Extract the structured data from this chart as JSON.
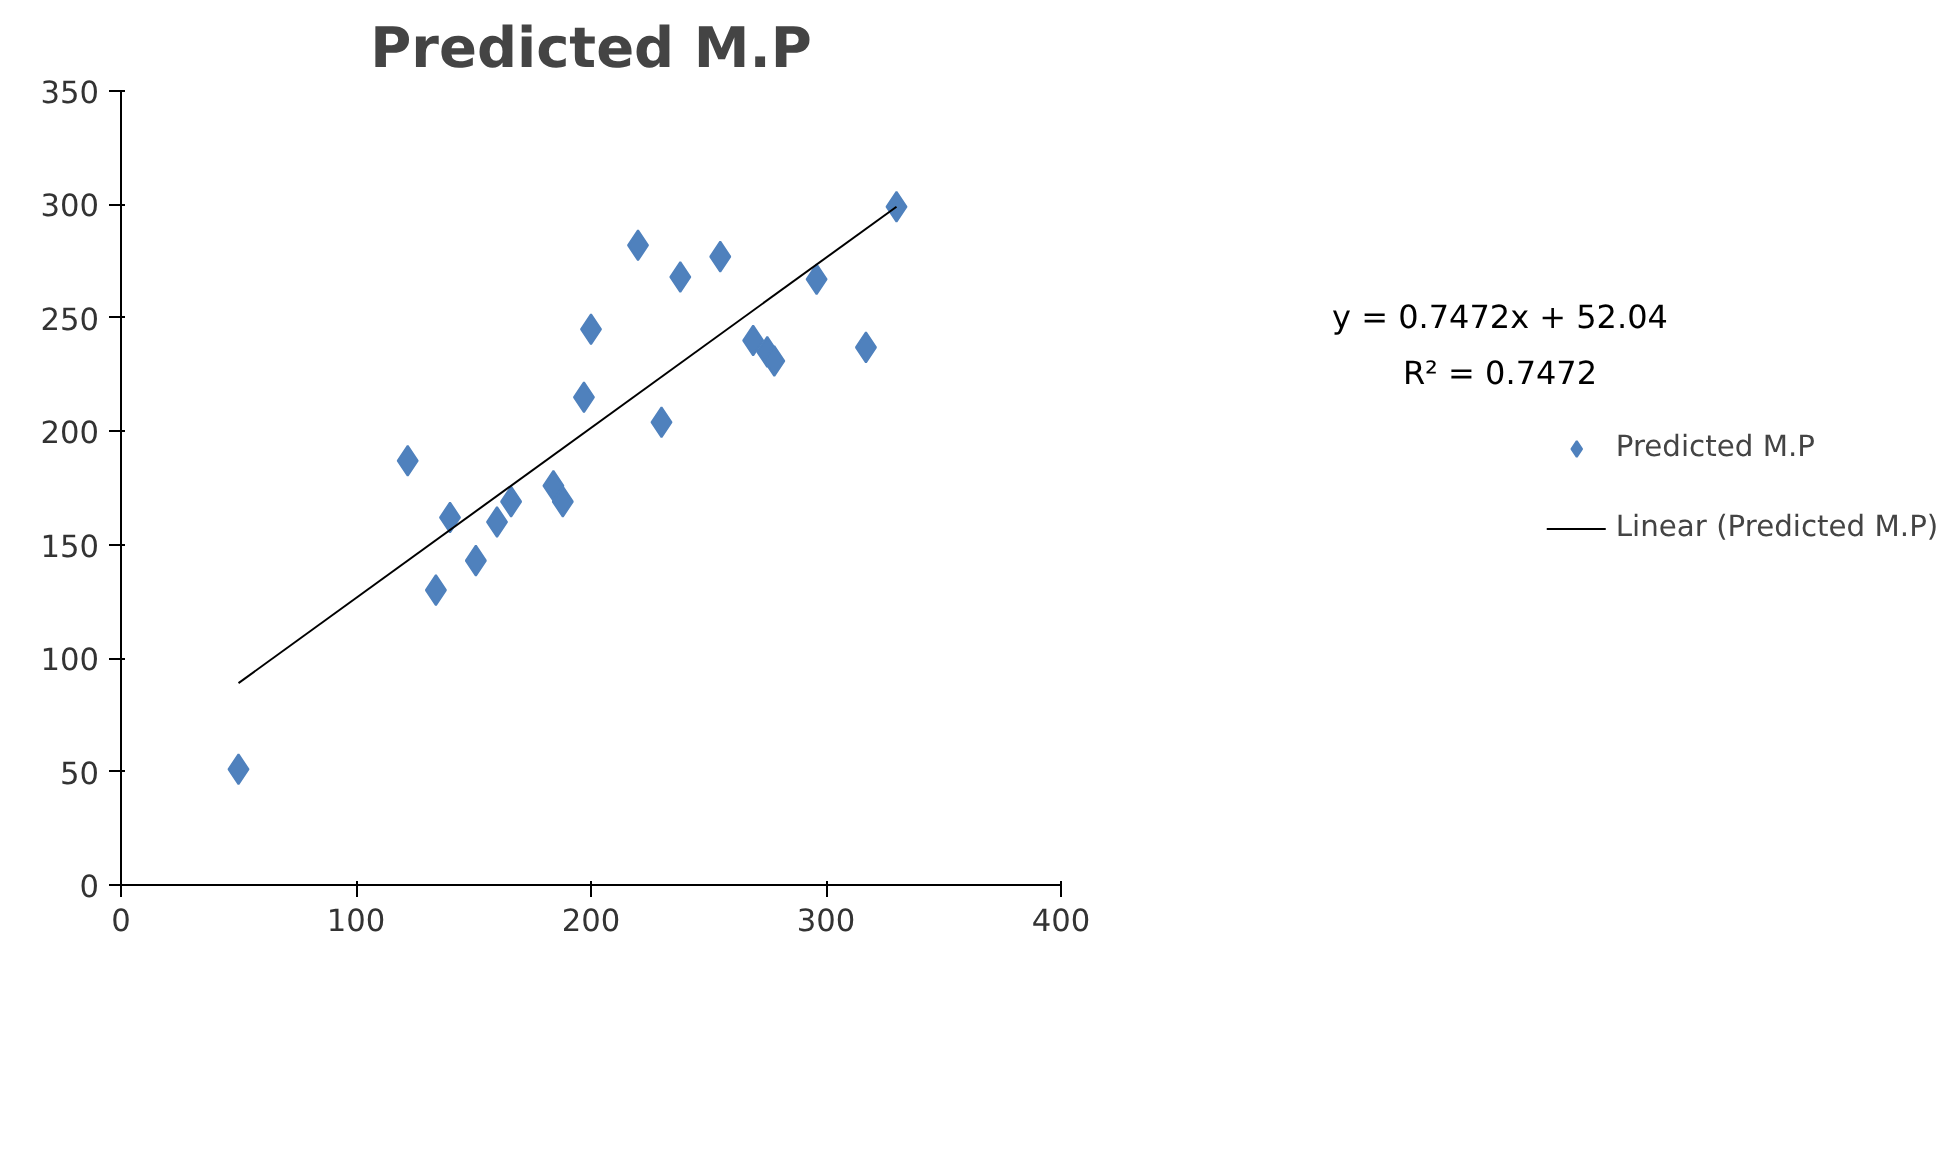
{
  "chart_data": {
    "type": "scatter",
    "title": "Predicted M.P",
    "xlim": [
      0,
      400
    ],
    "xticks": [
      0,
      100,
      200,
      300,
      400
    ],
    "ylim": [
      0,
      350
    ],
    "yticks": [
      0,
      50,
      100,
      150,
      200,
      250,
      300,
      350
    ],
    "grid": false,
    "legend": "right",
    "marker": "diamond",
    "annotations": [
      "y = 0.7472x + 52.04",
      "R² = 0.7472"
    ],
    "series": [
      {
        "name": "Predicted M.P",
        "color": "#4f81bd",
        "x": [
          50,
          122,
          140,
          134,
          151,
          160,
          166,
          184,
          188,
          197,
          200,
          220,
          230,
          238,
          255,
          269,
          275,
          278,
          296,
          317,
          330
        ],
        "values": [
          51,
          187,
          162,
          130,
          143,
          160,
          169,
          176,
          169,
          215,
          245,
          282,
          204,
          268,
          277,
          240,
          235,
          231,
          267,
          237,
          299
        ]
      },
      {
        "name": "Linear (Predicted M.P)",
        "type": "line",
        "marker": "none",
        "color": "#000000",
        "x": [
          50,
          330
        ],
        "values": [
          89,
          299
        ]
      }
    ]
  }
}
